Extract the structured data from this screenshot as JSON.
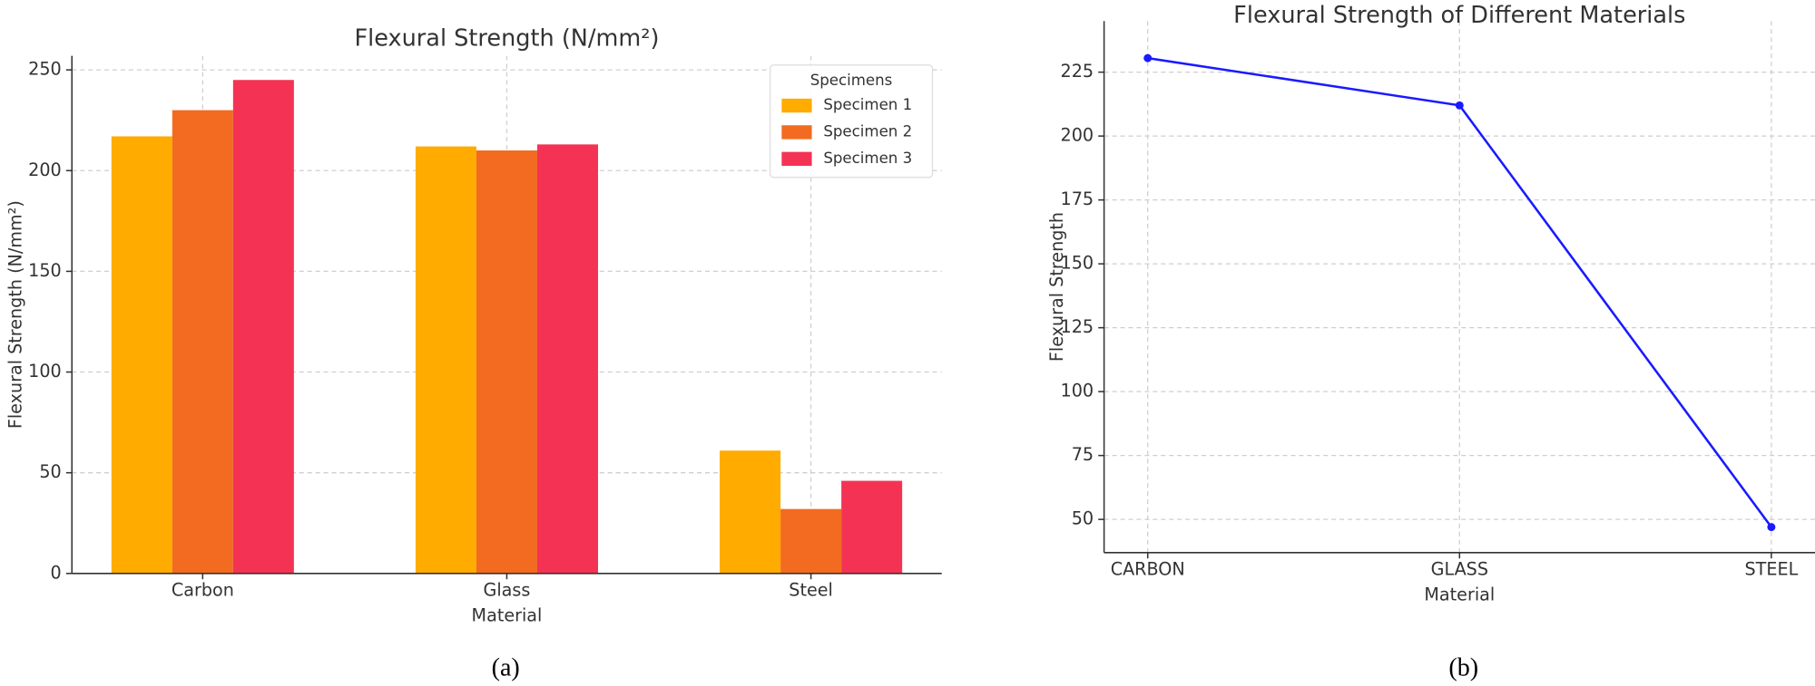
{
  "chart_data": [
    {
      "type": "bar",
      "title": "Flexural Strength (N/mm²)",
      "x_label": "Material",
      "y_label": "Flexural Strength (N/mm²)",
      "categories": [
        "Carbon",
        "Glass",
        "Steel"
      ],
      "series": [
        {
          "name": "Specimen 1",
          "color": "#ffab00",
          "values": [
            217,
            212,
            61
          ]
        },
        {
          "name": "Specimen 2",
          "color": "#f26b21",
          "values": [
            230,
            210,
            32
          ]
        },
        {
          "name": "Specimen 3",
          "color": "#f43354",
          "values": [
            245,
            213,
            46
          ]
        }
      ],
      "ylim": [
        0,
        257
      ],
      "yticks": [
        0,
        50,
        100,
        150,
        200,
        250
      ],
      "grid": true,
      "legend_title": "Specimens",
      "legend": "upper right",
      "caption": "(a)"
    },
    {
      "type": "line",
      "title": "Flexural Strength of Different Materials",
      "x_label": "Material",
      "y_label": "Flexural Strength",
      "categories": [
        "CARBON",
        "GLASS",
        "STEEL"
      ],
      "series": [
        {
          "name": "Flexural Strength",
          "color": "#1a1aff",
          "values": [
            230.5,
            212,
            47
          ]
        }
      ],
      "ylim": [
        37,
        245
      ],
      "yticks": [
        50,
        75,
        100,
        125,
        150,
        175,
        200,
        225
      ],
      "grid": true,
      "caption": "(b)"
    }
  ]
}
